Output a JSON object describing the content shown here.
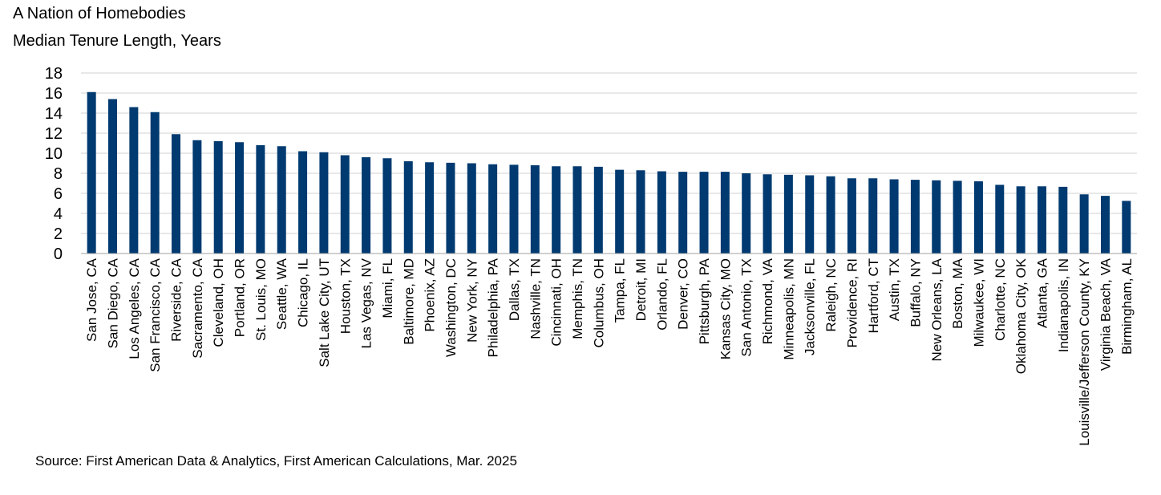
{
  "title": "A Nation of Homebodies",
  "subtitle": "Median Tenure Length, Years",
  "source": "Source: First American Data & Analytics, First American Calculations, Mar. 2025",
  "chart_data": {
    "type": "bar",
    "title": "A Nation of Homebodies",
    "ylabel": "Median Tenure Length, Years",
    "xlabel": "",
    "ylim": [
      0,
      18
    ],
    "yticks": [
      0,
      2,
      4,
      6,
      8,
      10,
      12,
      14,
      16,
      18
    ],
    "grid": true,
    "legend": "none",
    "bar_color": "#003A70",
    "categories": [
      "San Jose, CA",
      "San Diego, CA",
      "Los Angeles, CA",
      "San Francisco, CA",
      "Riverside, CA",
      "Sacramento, CA",
      "Cleveland, OH",
      "Portland, OR",
      "St. Louis, MO",
      "Seattle, WA",
      "Chicago, IL",
      "Salt Lake City, UT",
      "Houston, TX",
      "Las Vegas, NV",
      "Miami, FL",
      "Baltimore, MD",
      "Phoenix, AZ",
      "Washington, DC",
      "New York, NY",
      "Philadelphia, PA",
      "Dallas, TX",
      "Nashville, TN",
      "Cincinnati, OH",
      "Memphis, TN",
      "Columbus, OH",
      "Tampa, FL",
      "Detroit, MI",
      "Orlando, FL",
      "Denver, CO",
      "Pittsburgh, PA",
      "Kansas City, MO",
      "San Antonio, TX",
      "Richmond, VA",
      "Minneapolis, MN",
      "Jacksonville, FL",
      "Raleigh, NC",
      "Providence, RI",
      "Hartford, CT",
      "Austin, TX",
      "Buffalo, NY",
      "New Orleans, LA",
      "Boston, MA",
      "Milwaukee, WI",
      "Charlotte, NC",
      "Oklahoma City, OK",
      "Atlanta, GA",
      "Indianapolis, IN",
      "Louisville/Jefferson County, KY",
      "Virginia Beach, VA",
      "Birmingham, AL"
    ],
    "values": [
      16.1,
      15.4,
      14.6,
      14.1,
      11.9,
      11.3,
      11.2,
      11.1,
      10.8,
      10.7,
      10.2,
      10.1,
      9.8,
      9.6,
      9.5,
      9.2,
      9.1,
      9.05,
      9.0,
      8.9,
      8.85,
      8.8,
      8.7,
      8.7,
      8.65,
      8.35,
      8.3,
      8.2,
      8.15,
      8.15,
      8.15,
      8.0,
      7.9,
      7.85,
      7.8,
      7.7,
      7.5,
      7.5,
      7.4,
      7.35,
      7.3,
      7.25,
      7.2,
      6.85,
      6.7,
      6.7,
      6.65,
      5.9,
      5.75,
      5.25
    ]
  }
}
